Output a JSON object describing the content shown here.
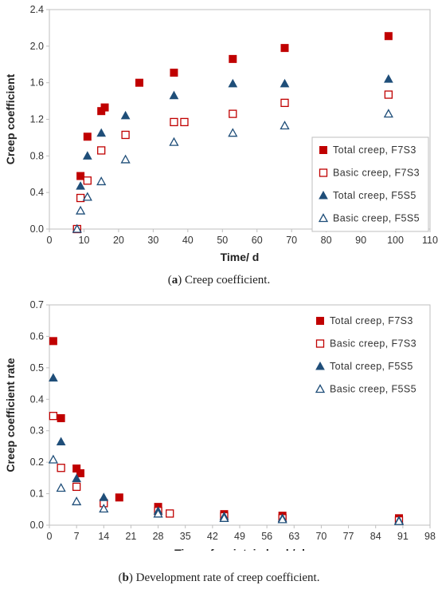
{
  "captions": {
    "a_label": "a",
    "a_text": " Creep coefficient.",
    "b_label": "b",
    "b_text": " Development rate of creep coefficient."
  },
  "chart_data": [
    {
      "type": "scatter",
      "title": "",
      "xlabel": "Time/ d",
      "ylabel": "Creep coefficient",
      "xlim": [
        0,
        110
      ],
      "ylim": [
        0,
        2.4
      ],
      "xticks": [
        0,
        10,
        20,
        30,
        40,
        50,
        60,
        70,
        80,
        90,
        100,
        110
      ],
      "yticks": [
        0.0,
        0.4,
        0.8,
        1.2,
        1.6,
        2.0,
        2.4
      ],
      "ytick_format": 1,
      "grid": false,
      "legend_position": "bottom-right",
      "series": [
        {
          "name": "Total creep, F7S3",
          "marker": "square-filled",
          "color": "#c00000",
          "x": [
            8,
            9,
            11,
            15,
            16,
            26,
            36,
            53,
            68,
            98
          ],
          "y": [
            0.0,
            0.58,
            1.01,
            1.29,
            1.33,
            1.6,
            1.71,
            1.86,
            1.98,
            2.11
          ]
        },
        {
          "name": "Basic creep, F7S3",
          "marker": "square-open",
          "color": "#c00000",
          "x": [
            8,
            9,
            11,
            15,
            22,
            36,
            39,
            53,
            68,
            98
          ],
          "y": [
            0.0,
            0.34,
            0.53,
            0.86,
            1.03,
            1.17,
            1.17,
            1.26,
            1.38,
            1.47
          ]
        },
        {
          "name": "Total creep, F5S5",
          "marker": "triangle-filled",
          "color": "#1f4e79",
          "x": [
            8,
            9,
            11,
            15,
            22,
            36,
            53,
            68,
            98
          ],
          "y": [
            0.0,
            0.47,
            0.8,
            1.05,
            1.24,
            1.46,
            1.59,
            1.59,
            1.64
          ]
        },
        {
          "name": "Basic creep, F5S5",
          "marker": "triangle-open",
          "color": "#1f4e79",
          "x": [
            8,
            9,
            11,
            15,
            22,
            36,
            53,
            68,
            98
          ],
          "y": [
            0.0,
            0.2,
            0.35,
            0.52,
            0.76,
            0.95,
            1.05,
            1.13,
            1.26
          ]
        }
      ]
    },
    {
      "type": "scatter",
      "title": "",
      "xlabel": "Time of maintain load / d",
      "ylabel": "Creep coefficient rate",
      "xlim": [
        0,
        98
      ],
      "ylim": [
        0,
        0.7
      ],
      "xticks": [
        0,
        7,
        14,
        21,
        28,
        35,
        42,
        49,
        56,
        63,
        70,
        77,
        84,
        91,
        98
      ],
      "yticks": [
        0.0,
        0.1,
        0.2,
        0.3,
        0.4,
        0.5,
        0.6,
        0.7
      ],
      "ytick_format": 1,
      "grid": false,
      "legend_position": "top-right",
      "series": [
        {
          "name": "Total creep, F7S3",
          "marker": "square-filled",
          "color": "#c00000",
          "x": [
            1,
            3,
            7,
            8,
            18,
            28,
            45,
            60,
            90
          ],
          "y": [
            0.585,
            0.34,
            0.18,
            0.165,
            0.088,
            0.058,
            0.035,
            0.03,
            0.022
          ]
        },
        {
          "name": "Basic creep, F7S3",
          "marker": "square-open",
          "color": "#c00000",
          "x": [
            1,
            3,
            7,
            14,
            28,
            31,
            45,
            60,
            90
          ],
          "y": [
            0.347,
            0.182,
            0.122,
            0.07,
            0.045,
            0.037,
            0.028,
            0.022,
            0.015
          ]
        },
        {
          "name": "Total creep, F5S5",
          "marker": "triangle-filled",
          "color": "#1f4e79",
          "x": [
            1,
            3,
            7,
            14,
            28,
            45,
            60,
            90
          ],
          "y": [
            0.468,
            0.265,
            0.148,
            0.088,
            0.045,
            0.028,
            0.022,
            0.015
          ]
        },
        {
          "name": "Basic creep, F5S5",
          "marker": "triangle-open",
          "color": "#1f4e79",
          "x": [
            1,
            3,
            7,
            14,
            28,
            45,
            60,
            90
          ],
          "y": [
            0.208,
            0.118,
            0.075,
            0.052,
            0.036,
            0.022,
            0.018,
            0.012
          ]
        }
      ]
    }
  ]
}
